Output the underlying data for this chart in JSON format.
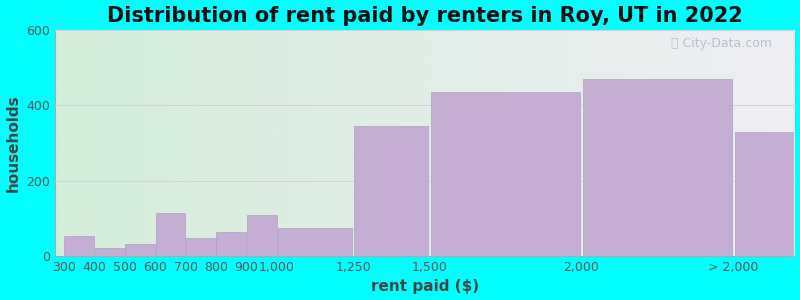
{
  "title": "Distribution of rent paid by renters in Roy, UT in 2022",
  "xlabel": "rent paid ($)",
  "ylabel": "households",
  "background_color": "#00FFFF",
  "bar_color": "#c4aed4",
  "bar_edge_color": "#b09ec4",
  "bin_edges": [
    300,
    400,
    500,
    600,
    700,
    800,
    900,
    1000,
    1250,
    1500,
    2000,
    2500
  ],
  "values": [
    52,
    20,
    32,
    115,
    48,
    65,
    110,
    75,
    345,
    435,
    470,
    330
  ],
  "xtick_positions": [
    300,
    400,
    500,
    600,
    700,
    800,
    900,
    1000,
    1250,
    1500,
    2000,
    2500
  ],
  "xtick_labels": [
    "300",
    "400",
    "500",
    "600",
    "700",
    "800",
    "900",
    "1,000",
    "1,250",
    "1,500",
    "2,000",
    "> 2,000"
  ],
  "ylim": [
    0,
    600
  ],
  "xlim": [
    270,
    2700
  ],
  "yticks": [
    0,
    200,
    400,
    600
  ],
  "title_fontsize": 15,
  "axis_label_fontsize": 11,
  "tick_fontsize": 9,
  "watermark_text": "City-Data.com",
  "grid_color": "#ddccdd",
  "bg_left_color": "#d4eeda",
  "bg_right_color": "#eeeef4"
}
